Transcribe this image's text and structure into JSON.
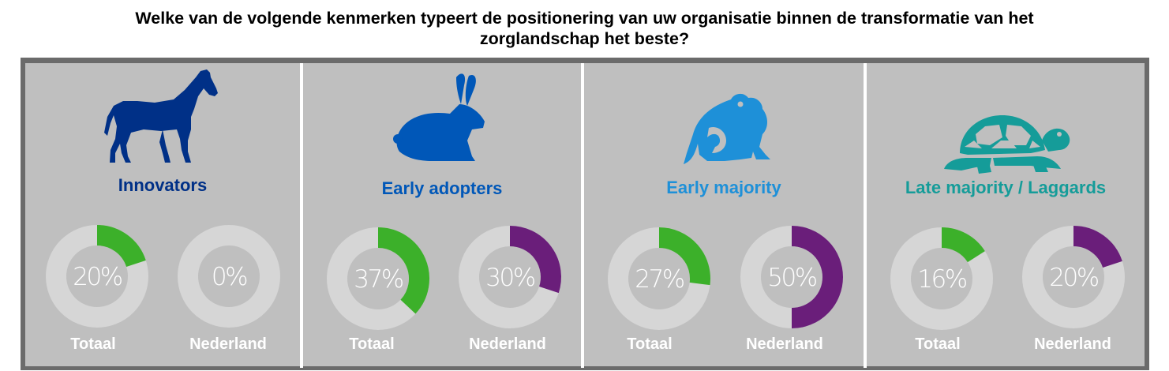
{
  "title_line1": "Welke van de volgende kenmerken typeert de positionering van uw organisatie binnen de transformatie van het",
  "title_line2": "zorglandschap het beste?",
  "colors": {
    "totaal": "#3cb02a",
    "nederland": "#6a1e7a",
    "track": "#d6d6d6"
  },
  "chart_data": {
    "type": "donut",
    "series_labels": [
      "Totaal",
      "Nederland"
    ],
    "categories": [
      {
        "name": "Innovators",
        "icon": "horse-icon",
        "color": "#003087",
        "totaal": 20,
        "nederland": 0,
        "totaal_label": "20%",
        "nederland_label": "0%"
      },
      {
        "name": "Early adopters",
        "icon": "rabbit-icon",
        "color": "#0057b8",
        "totaal": 37,
        "nederland": 30,
        "totaal_label": "37%",
        "nederland_label": "30%"
      },
      {
        "name": "Early majority",
        "icon": "frog-icon",
        "color": "#1e90d8",
        "totaal": 27,
        "nederland": 50,
        "totaal_label": "27%",
        "nederland_label": "50%"
      },
      {
        "name": "Late majority / Laggards",
        "icon": "turtle-icon",
        "color": "#159c99",
        "totaal": 16,
        "nederland": 20,
        "totaal_label": "16%",
        "nederland_label": "20%"
      }
    ]
  }
}
